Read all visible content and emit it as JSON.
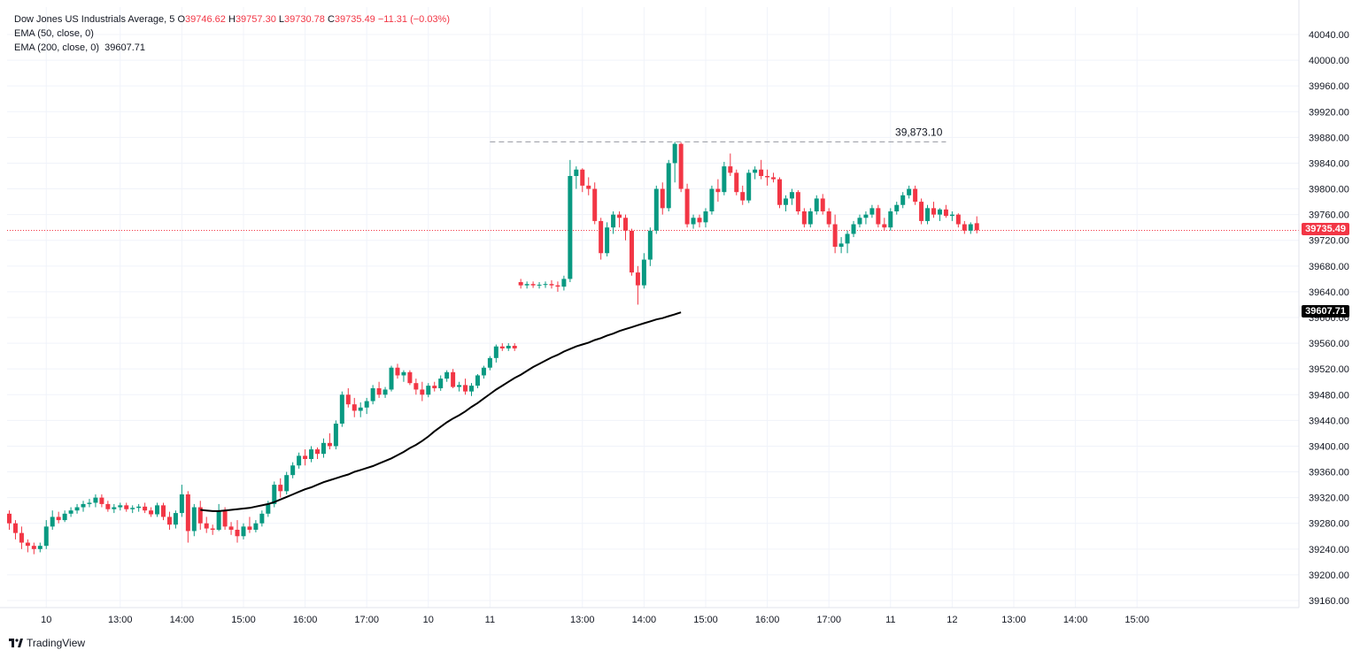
{
  "header": {
    "symbol": "Dow Jones US Industrials Average, 5",
    "o_label": "O",
    "o_value": "39746.62",
    "h_label": "H",
    "h_value": "39757.30",
    "l_label": "L",
    "l_value": "39730.78",
    "c_label": "C",
    "c_value": "39735.49",
    "change": "−11.31 (−0.03%)",
    "ema50_label": "EMA (50, close, 0)",
    "ema200_label": "EMA (200, close, 0)",
    "ema200_value": "39607.71"
  },
  "branding": {
    "name": "TradingView"
  },
  "price_labels": {
    "last": "39735.49",
    "ema200": "39607.71",
    "high_line": "39,873.10"
  },
  "colors": {
    "up": "#089981",
    "down": "#f23645",
    "ema": "#000000",
    "grid": "#f0f3fa",
    "last_line": "#f23645"
  },
  "chart_data": {
    "type": "candlestick",
    "timeframe": "5",
    "ylim": [
      39120,
      40060
    ],
    "y_ticks": [
      39160,
      39200,
      39240,
      39280,
      39320,
      39360,
      39400,
      39440,
      39480,
      39520,
      39560,
      39600,
      39640,
      39680,
      39720,
      39760,
      39800,
      39840,
      39880,
      39920,
      39960,
      40000,
      40040
    ],
    "x_tick_labels": [
      "10",
      "13:00",
      "14:00",
      "15:00",
      "16:00",
      "17:00",
      "10",
      "11",
      "13:00",
      "14:00",
      "15:00",
      "16:00",
      "17:00",
      "11",
      "12",
      "13:00",
      "14:00",
      "15:00"
    ],
    "x_tick_bar_index": [
      6,
      18,
      28,
      38,
      48,
      58,
      68,
      78,
      93,
      103,
      113,
      123,
      133,
      143,
      153,
      163,
      173,
      183
    ],
    "reference_line": {
      "value": 39873.1,
      "from_bar": 78,
      "to_bar": 152
    },
    "ema200_start_bar": 31,
    "ema200": [
      39301,
      39300,
      39299,
      39299,
      39300,
      39301,
      39302,
      39303,
      39304,
      39306,
      39308,
      39310,
      39313,
      39317,
      39321,
      39325,
      39329,
      39333,
      39336,
      39340,
      39344,
      39347,
      39350,
      39353,
      39356,
      39360,
      39363,
      39366,
      39369,
      39373,
      39377,
      39381,
      39386,
      39391,
      39397,
      39402,
      39408,
      39415,
      39423,
      39430,
      39437,
      39443,
      39448,
      39454,
      39461,
      39467,
      39474,
      39481,
      39488,
      39494,
      39500,
      39506,
      39511,
      39517,
      39523,
      39528,
      39533,
      39538,
      39542,
      39547,
      39551,
      39555,
      39558,
      39561,
      39565,
      39568,
      39572,
      39575,
      39579,
      39582,
      39585,
      39588,
      39591,
      39594,
      39597,
      39599,
      39602,
      39605,
      39608
    ],
    "candles": [
      [
        39295,
        39300,
        39270,
        39280
      ],
      [
        39280,
        39285,
        39255,
        39265
      ],
      [
        39265,
        39275,
        39240,
        39250
      ],
      [
        39250,
        39255,
        39235,
        39245
      ],
      [
        39245,
        39250,
        39232,
        39240
      ],
      [
        39240,
        39250,
        39235,
        39245
      ],
      [
        39245,
        39285,
        39240,
        39275
      ],
      [
        39275,
        39300,
        39270,
        39290
      ],
      [
        39290,
        39298,
        39280,
        39285
      ],
      [
        39285,
        39300,
        39282,
        39295
      ],
      [
        39295,
        39305,
        39290,
        39300
      ],
      [
        39300,
        39310,
        39295,
        39305
      ],
      [
        39305,
        39315,
        39298,
        39310
      ],
      [
        39310,
        39318,
        39305,
        39312
      ],
      [
        39312,
        39325,
        39305,
        39320
      ],
      [
        39320,
        39325,
        39305,
        39310
      ],
      [
        39310,
        39315,
        39298,
        39302
      ],
      [
        39302,
        39310,
        39296,
        39305
      ],
      [
        39305,
        39312,
        39300,
        39308
      ],
      [
        39308,
        39312,
        39298,
        39302
      ],
      [
        39302,
        39308,
        39296,
        39304
      ],
      [
        39304,
        39310,
        39298,
        39306
      ],
      [
        39306,
        39312,
        39296,
        39300
      ],
      [
        39300,
        39305,
        39290,
        39294
      ],
      [
        39294,
        39312,
        39290,
        39308
      ],
      [
        39308,
        39312,
        39285,
        39290
      ],
      [
        39290,
        39298,
        39270,
        39278
      ],
      [
        39278,
        39300,
        39272,
        39296
      ],
      [
        39296,
        39340,
        39290,
        39325
      ],
      [
        39325,
        39330,
        39250,
        39268
      ],
      [
        39268,
        39310,
        39260,
        39305
      ],
      [
        39305,
        39315,
        39270,
        39280
      ],
      [
        39280,
        39290,
        39265,
        39272
      ],
      [
        39272,
        39278,
        39262,
        39270
      ],
      [
        39270,
        39310,
        39268,
        39300
      ],
      [
        39300,
        39305,
        39270,
        39275
      ],
      [
        39275,
        39282,
        39262,
        39270
      ],
      [
        39270,
        39285,
        39250,
        39260
      ],
      [
        39260,
        39280,
        39255,
        39275
      ],
      [
        39275,
        39290,
        39265,
        39270
      ],
      [
        39270,
        39285,
        39266,
        39280
      ],
      [
        39280,
        39300,
        39275,
        39295
      ],
      [
        39295,
        39315,
        39290,
        39310
      ],
      [
        39310,
        39345,
        39305,
        39340
      ],
      [
        39340,
        39350,
        39320,
        39330
      ],
      [
        39330,
        39360,
        39325,
        39355
      ],
      [
        39355,
        39375,
        39350,
        39370
      ],
      [
        39370,
        39390,
        39365,
        39385
      ],
      [
        39385,
        39395,
        39370,
        39380
      ],
      [
        39380,
        39400,
        39375,
        39395
      ],
      [
        39395,
        39398,
        39380,
        39388
      ],
      [
        39388,
        39412,
        39382,
        39405
      ],
      [
        39405,
        39420,
        39395,
        39400
      ],
      [
        39400,
        39440,
        39395,
        39435
      ],
      [
        39435,
        39485,
        39430,
        39480
      ],
      [
        39480,
        39490,
        39460,
        39465
      ],
      [
        39465,
        39475,
        39445,
        39455
      ],
      [
        39455,
        39468,
        39445,
        39460
      ],
      [
        39460,
        39475,
        39450,
        39470
      ],
      [
        39470,
        39495,
        39465,
        39490
      ],
      [
        39490,
        39500,
        39475,
        39480
      ],
      [
        39480,
        39492,
        39475,
        39488
      ],
      [
        39488,
        39525,
        39485,
        39522
      ],
      [
        39522,
        39528,
        39505,
        39510
      ],
      [
        39510,
        39518,
        39500,
        39515
      ],
      [
        39515,
        39518,
        39495,
        39498
      ],
      [
        39498,
        39505,
        39480,
        39488
      ],
      [
        39488,
        39500,
        39470,
        39480
      ],
      [
        39480,
        39498,
        39476,
        39494
      ],
      [
        39494,
        39500,
        39485,
        39490
      ],
      [
        39490,
        39510,
        39486,
        39505
      ],
      [
        39505,
        39518,
        39500,
        39515
      ],
      [
        39515,
        39520,
        39490,
        39492
      ],
      [
        39492,
        39500,
        39485,
        39495
      ],
      [
        39495,
        39505,
        39480,
        39485
      ],
      [
        39485,
        39498,
        39478,
        39494
      ],
      [
        39494,
        39512,
        39490,
        39510
      ],
      [
        39510,
        39525,
        39505,
        39522
      ],
      [
        39522,
        39540,
        39518,
        39537
      ],
      [
        39537,
        39558,
        39530,
        39555
      ],
      [
        39555,
        39560,
        39548,
        39552
      ],
      [
        39552,
        39560,
        39548,
        39556
      ],
      [
        39556,
        39560,
        39548,
        39552
      ],
      [
        39655,
        39660,
        39645,
        39650
      ],
      [
        39650,
        39656,
        39645,
        39652
      ],
      [
        39652,
        39656,
        39646,
        39650
      ],
      [
        39650,
        39655,
        39645,
        39651
      ],
      [
        39651,
        39656,
        39646,
        39652
      ],
      [
        39652,
        39658,
        39645,
        39650
      ],
      [
        39650,
        39656,
        39640,
        39648
      ],
      [
        39648,
        39665,
        39642,
        39660
      ],
      [
        39660,
        39845,
        39655,
        39820
      ],
      [
        39820,
        39835,
        39800,
        39830
      ],
      [
        39830,
        39832,
        39795,
        39805
      ],
      [
        39805,
        39818,
        39790,
        39800
      ],
      [
        39800,
        39810,
        39745,
        39750
      ],
      [
        39750,
        39755,
        39690,
        39700
      ],
      [
        39700,
        39748,
        39695,
        39740
      ],
      [
        39740,
        39765,
        39730,
        39760
      ],
      [
        39760,
        39765,
        39740,
        39755
      ],
      [
        39755,
        39760,
        39720,
        39735
      ],
      [
        39735,
        39738,
        39665,
        39670
      ],
      [
        39670,
        39680,
        39620,
        39650
      ],
      [
        39650,
        39700,
        39645,
        39690
      ],
      [
        39690,
        39740,
        39680,
        39735
      ],
      [
        39735,
        39805,
        39730,
        39800
      ],
      [
        39800,
        39810,
        39760,
        39770
      ],
      [
        39770,
        39845,
        39765,
        39840
      ],
      [
        39840,
        39873,
        39810,
        39870
      ],
      [
        39870,
        39872,
        39795,
        39800
      ],
      [
        39800,
        39808,
        39740,
        39745
      ],
      [
        39745,
        39760,
        39738,
        39755
      ],
      [
        39755,
        39760,
        39740,
        39748
      ],
      [
        39748,
        39770,
        39740,
        39765
      ],
      [
        39765,
        39805,
        39760,
        39800
      ],
      [
        39800,
        39815,
        39780,
        39795
      ],
      [
        39795,
        39842,
        39790,
        39835
      ],
      [
        39835,
        39855,
        39820,
        39825
      ],
      [
        39825,
        39830,
        39790,
        39795
      ],
      [
        39795,
        39805,
        39775,
        39782
      ],
      [
        39782,
        39830,
        39778,
        39825
      ],
      [
        39825,
        39835,
        39815,
        39830
      ],
      [
        39830,
        39845,
        39815,
        39820
      ],
      [
        39820,
        39830,
        39805,
        39818
      ],
      [
        39818,
        39825,
        39810,
        39815
      ],
      [
        39815,
        39818,
        39770,
        39775
      ],
      [
        39775,
        39790,
        39765,
        39785
      ],
      [
        39785,
        39800,
        39775,
        39795
      ],
      [
        39795,
        39798,
        39760,
        39765
      ],
      [
        39765,
        39770,
        39740,
        39745
      ],
      [
        39745,
        39770,
        39740,
        39765
      ],
      [
        39765,
        39790,
        39760,
        39785
      ],
      [
        39785,
        39792,
        39760,
        39765
      ],
      [
        39765,
        39770,
        39740,
        39745
      ],
      [
        39745,
        39760,
        39700,
        39710
      ],
      [
        39710,
        39725,
        39700,
        39715
      ],
      [
        39715,
        39735,
        39700,
        39730
      ],
      [
        39730,
        39750,
        39725,
        39745
      ],
      [
        39745,
        39760,
        39740,
        39755
      ],
      [
        39755,
        39765,
        39745,
        39760
      ],
      [
        39760,
        39775,
        39755,
        39770
      ],
      [
        39770,
        39775,
        39740,
        39745
      ],
      [
        39745,
        39755,
        39735,
        39740
      ],
      [
        39740,
        39770,
        39735,
        39765
      ],
      [
        39765,
        39780,
        39760,
        39775
      ],
      [
        39775,
        39795,
        39770,
        39790
      ],
      [
        39790,
        39805,
        39785,
        39800
      ],
      [
        39800,
        39805,
        39775,
        39780
      ],
      [
        39780,
        39785,
        39745,
        39750
      ],
      [
        39750,
        39775,
        39745,
        39770
      ],
      [
        39770,
        39780,
        39755,
        39760
      ],
      [
        39760,
        39770,
        39750,
        39768
      ],
      [
        39768,
        39775,
        39755,
        39758
      ],
      [
        39758,
        39765,
        39750,
        39760
      ],
      [
        39760,
        39762,
        39740,
        39745
      ],
      [
        39745,
        39750,
        39730,
        39735
      ],
      [
        39735,
        39748,
        39730,
        39745
      ],
      [
        39746.62,
        39757.3,
        39730.78,
        39735.49
      ]
    ]
  }
}
